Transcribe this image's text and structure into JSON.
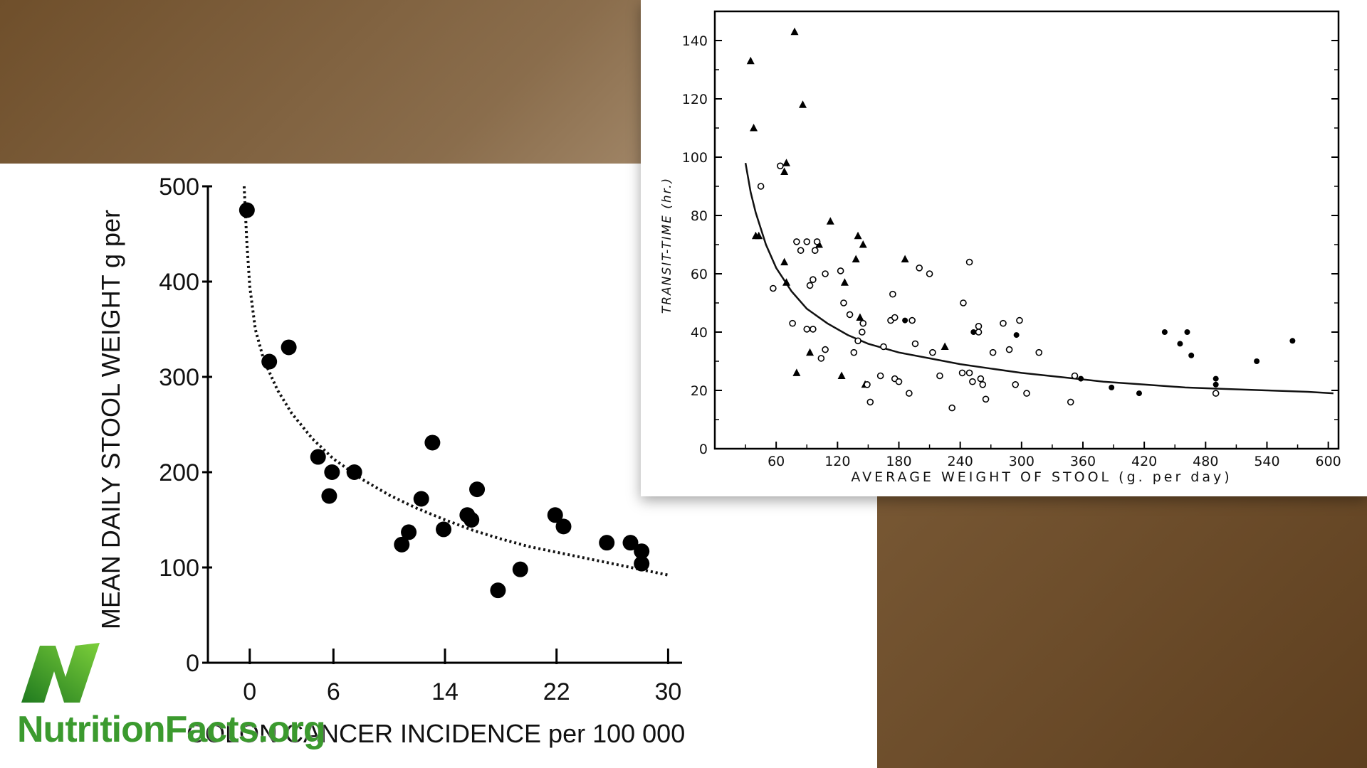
{
  "brand": {
    "name": "NutritionFacts.org",
    "color": "#3b9a2e"
  },
  "chart_data": [
    {
      "type": "scatter",
      "title": "",
      "xlabel": "COLON CANCER INCIDENCE per 100 000",
      "ylabel": "MEAN DAILY STOOL WEIGHT g per",
      "xlim": [
        -3,
        31
      ],
      "ylim": [
        0,
        500
      ],
      "x_ticks": [
        0,
        6,
        14,
        22,
        30
      ],
      "y_ticks": [
        0,
        100,
        200,
        300,
        400,
        500
      ],
      "x_tick_labels": [
        "0",
        "6",
        "14",
        "22",
        "30"
      ],
      "y_tick_labels": [
        "0",
        "100",
        "200",
        "300",
        "400",
        "500"
      ],
      "marker_color": "#000000",
      "points": [
        {
          "x": -0.2,
          "y": 475
        },
        {
          "x": 1.4,
          "y": 316
        },
        {
          "x": 2.8,
          "y": 331
        },
        {
          "x": 4.9,
          "y": 216
        },
        {
          "x": 5.7,
          "y": 175
        },
        {
          "x": 5.9,
          "y": 200
        },
        {
          "x": 7.5,
          "y": 200
        },
        {
          "x": 10.9,
          "y": 124
        },
        {
          "x": 11.4,
          "y": 137
        },
        {
          "x": 12.3,
          "y": 172
        },
        {
          "x": 13.1,
          "y": 231
        },
        {
          "x": 13.9,
          "y": 140
        },
        {
          "x": 15.6,
          "y": 155
        },
        {
          "x": 15.9,
          "y": 150
        },
        {
          "x": 16.3,
          "y": 182
        },
        {
          "x": 17.8,
          "y": 76
        },
        {
          "x": 19.4,
          "y": 98
        },
        {
          "x": 21.9,
          "y": 155
        },
        {
          "x": 22.5,
          "y": 143
        },
        {
          "x": 25.6,
          "y": 126
        },
        {
          "x": 27.3,
          "y": 126
        },
        {
          "x": 28.1,
          "y": 117
        },
        {
          "x": 28.1,
          "y": 104
        }
      ],
      "curve": {
        "style": "dotted",
        "x": [
          -0.4,
          -0.2,
          0.0,
          0.4,
          1.0,
          2.0,
          3.0,
          4.5,
          6.0,
          8.0,
          10.0,
          12.0,
          14.0,
          16.0,
          18.0,
          20.0,
          22.0,
          24.0,
          26.0,
          28.0,
          30.0
        ],
        "y": [
          500,
          440,
          395,
          350,
          318,
          286,
          262,
          235,
          214,
          193,
          176,
          162,
          150,
          139,
          130,
          122,
          116,
          110,
          104,
          98,
          92
        ]
      }
    },
    {
      "type": "scatter",
      "title": "",
      "xlabel": "AVERAGE WEIGHT OF STOOL (g. per day)",
      "ylabel": "TRANSIT-TIME (hr.)",
      "xlim": [
        0,
        610
      ],
      "ylim": [
        0,
        150
      ],
      "x_ticks": [
        60,
        120,
        180,
        240,
        300,
        360,
        420,
        480,
        540,
        600
      ],
      "y_ticks": [
        0,
        20,
        40,
        60,
        80,
        100,
        120,
        140
      ],
      "x_tick_labels": [
        "60",
        "120",
        "180",
        "240",
        "300",
        "360",
        "420",
        "480",
        "540",
        "600"
      ],
      "y_tick_labels": [
        "0",
        "20",
        "40",
        "60",
        "80",
        "100",
        "120",
        "140"
      ],
      "series": [
        {
          "marker": "triangle",
          "points": [
            [
              35,
              133
            ],
            [
              38,
              110
            ],
            [
              78,
              143
            ],
            [
              86,
              118
            ],
            [
              70,
              98
            ],
            [
              68,
              95
            ],
            [
              40,
              73
            ],
            [
              43,
              73
            ],
            [
              68,
              64
            ],
            [
              70,
              57
            ],
            [
              113,
              78
            ],
            [
              102,
              70
            ],
            [
              140,
              73
            ],
            [
              145,
              70
            ],
            [
              138,
              65
            ],
            [
              127,
              57
            ],
            [
              142,
              45
            ],
            [
              186,
              65
            ],
            [
              225,
              35
            ],
            [
              93,
              33
            ],
            [
              80,
              26
            ],
            [
              124,
              25
            ],
            [
              147,
              22
            ]
          ]
        },
        {
          "marker": "open-circle",
          "points": [
            [
              45,
              90
            ],
            [
              64,
              97
            ],
            [
              57,
              55
            ],
            [
              76,
              43
            ],
            [
              80,
              71
            ],
            [
              84,
              68
            ],
            [
              90,
              71
            ],
            [
              98,
              68
            ],
            [
              100,
              71
            ],
            [
              93,
              56
            ],
            [
              96,
              58
            ],
            [
              108,
              60
            ],
            [
              90,
              41
            ],
            [
              96,
              41
            ],
            [
              104,
              31
            ],
            [
              108,
              34
            ],
            [
              123,
              61
            ],
            [
              126,
              50
            ],
            [
              132,
              46
            ],
            [
              145,
              43
            ],
            [
              140,
              37
            ],
            [
              144,
              40
            ],
            [
              136,
              33
            ],
            [
              165,
              35
            ],
            [
              172,
              44
            ],
            [
              174,
              53
            ],
            [
              176,
              45
            ],
            [
              193,
              44
            ],
            [
              196,
              36
            ],
            [
              200,
              62
            ],
            [
              210,
              60
            ],
            [
              213,
              33
            ],
            [
              220,
              25
            ],
            [
              243,
              50
            ],
            [
              249,
              64
            ],
            [
              249,
              26
            ],
            [
              252,
              23
            ],
            [
              258,
              42
            ],
            [
              258,
              40
            ],
            [
              260,
              24
            ],
            [
              262,
              22
            ],
            [
              265,
              17
            ],
            [
              272,
              33
            ],
            [
              282,
              43
            ],
            [
              288,
              34
            ],
            [
              294,
              22
            ],
            [
              298,
              44
            ],
            [
              305,
              19
            ],
            [
              317,
              33
            ],
            [
              149,
              22
            ],
            [
              152,
              16
            ],
            [
              162,
              25
            ],
            [
              176,
              24
            ],
            [
              180,
              23
            ],
            [
              190,
              19
            ],
            [
              242,
              26
            ],
            [
              232,
              14
            ],
            [
              352,
              25
            ],
            [
              348,
              16
            ],
            [
              490,
              19
            ]
          ]
        },
        {
          "marker": "filled-circle",
          "points": [
            [
              186,
              44
            ],
            [
              253,
              40
            ],
            [
              295,
              39
            ],
            [
              358,
              24
            ],
            [
              388,
              21
            ],
            [
              415,
              19
            ],
            [
              440,
              40
            ],
            [
              455,
              36
            ],
            [
              462,
              40
            ],
            [
              466,
              32
            ],
            [
              490,
              24
            ],
            [
              490,
              22
            ],
            [
              530,
              30
            ],
            [
              565,
              37
            ]
          ]
        }
      ],
      "curve": {
        "style": "solid",
        "x": [
          30,
          35,
          40,
          50,
          60,
          75,
          90,
          110,
          130,
          150,
          180,
          210,
          240,
          270,
          300,
          340,
          380,
          420,
          460,
          500,
          540,
          580,
          605
        ],
        "y": [
          98,
          88,
          81,
          70,
          62,
          54,
          48,
          43,
          39,
          36,
          33,
          31,
          29,
          27.5,
          26,
          24.5,
          23,
          22,
          21,
          20.5,
          20,
          19.5,
          19
        ]
      }
    }
  ]
}
